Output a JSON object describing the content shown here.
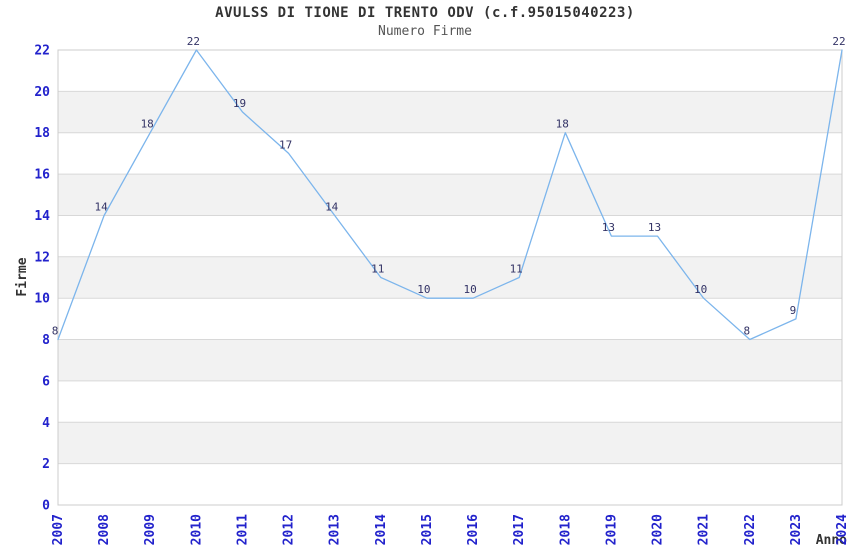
{
  "chart_data": {
    "type": "line",
    "title": "AVULSS DI TIONE DI TRENTO ODV (c.f.95015040223)",
    "subtitle": "Numero Firme",
    "xlabel": "Anno",
    "ylabel": "Firme",
    "categories": [
      "2007",
      "2008",
      "2009",
      "2010",
      "2011",
      "2012",
      "2013",
      "2014",
      "2015",
      "2016",
      "2017",
      "2018",
      "2019",
      "2020",
      "2021",
      "2022",
      "2023",
      "2024"
    ],
    "series": [
      {
        "name": "Numero Firme",
        "values": [
          8,
          14,
          18,
          22,
          19,
          17,
          14,
          11,
          10,
          10,
          11,
          18,
          13,
          13,
          10,
          8,
          9,
          22
        ]
      }
    ],
    "ylim": [
      0,
      22
    ],
    "ytick_step": 2,
    "yticks": [
      0,
      2,
      4,
      6,
      8,
      10,
      12,
      14,
      16,
      18,
      20,
      22
    ],
    "data_labels": "on",
    "markers": "none",
    "legend": "none",
    "grid": "horizontal-lines-with-alternating-bands",
    "x_tick_rotation": -90,
    "style": {
      "line_color": "#7cb5ec",
      "data_label_color": "#333366",
      "tick_label_color": "#2222cc",
      "axis_title_color": "#333333",
      "title_color": "#333333",
      "subtitle_color": "#555555",
      "band_color": "#f2f2f2",
      "grid_color": "#d8d8d8",
      "border_color": "#cccccc",
      "background": "#ffffff"
    }
  }
}
